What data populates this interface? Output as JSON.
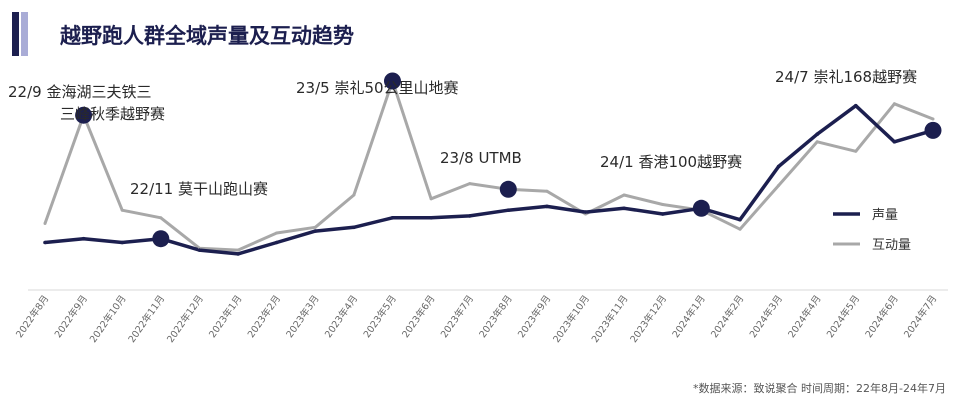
{
  "header": {
    "title": "越野跑人群全域声量及互动趋势"
  },
  "source_note": "*数据来源：致说聚合 时间周期：22年8月-24年7月",
  "colors": {
    "accent": "#1c1f4f",
    "accent_light": "#a9acd6",
    "series_voice": "#1c1f4f",
    "series_interaction": "#a8a8a8"
  },
  "chart_data": {
    "type": "line",
    "title": "越野跑人群全域声量及互动趋势",
    "x": [
      "2022年8月",
      "2022年9月",
      "2022年10月",
      "2022年11月",
      "2022年12月",
      "2023年1月",
      "2023年2月",
      "2023年3月",
      "2023年4月",
      "2023年5月",
      "2023年6月",
      "2023年7月",
      "2023年8月",
      "2023年9月",
      "2023年10月",
      "2023年11月",
      "2023年12月",
      "2024年1月",
      "2024年2月",
      "2024年3月",
      "2024年4月",
      "2024年5月",
      "2024年6月",
      "2024年7月"
    ],
    "series": [
      {
        "name": "声量",
        "values": [
          25,
          27,
          25,
          27,
          21,
          19,
          25,
          31,
          33,
          38,
          38,
          39,
          42,
          44,
          41,
          43,
          40,
          43,
          37,
          65,
          82,
          97,
          78,
          84
        ]
      },
      {
        "name": "互动量",
        "values": [
          35,
          92,
          42,
          38,
          22,
          21,
          30,
          33,
          50,
          110,
          48,
          56,
          53,
          52,
          40,
          50,
          45,
          42,
          32,
          55,
          78,
          73,
          98,
          90
        ]
      }
    ],
    "yrange": [
      0,
      120
    ],
    "grid": false,
    "legend_position": "right",
    "annotations": [
      {
        "x": "2022年9月",
        "lines": [
          "22/9 金海湖三夫铁三",
          "三峰秋季越野赛"
        ]
      },
      {
        "x": "2022年11月",
        "lines": [
          "22/11 莫干山跑山赛"
        ]
      },
      {
        "x": "2023年5月",
        "lines": [
          "23/5 崇礼50公里山地赛"
        ]
      },
      {
        "x": "2023年8月",
        "lines": [
          "23/8 UTMB"
        ]
      },
      {
        "x": "2024年1月",
        "lines": [
          "24/1 香港100越野赛"
        ]
      },
      {
        "x": "2024年7月",
        "lines": [
          "24/7 崇礼168越野赛"
        ]
      }
    ]
  }
}
